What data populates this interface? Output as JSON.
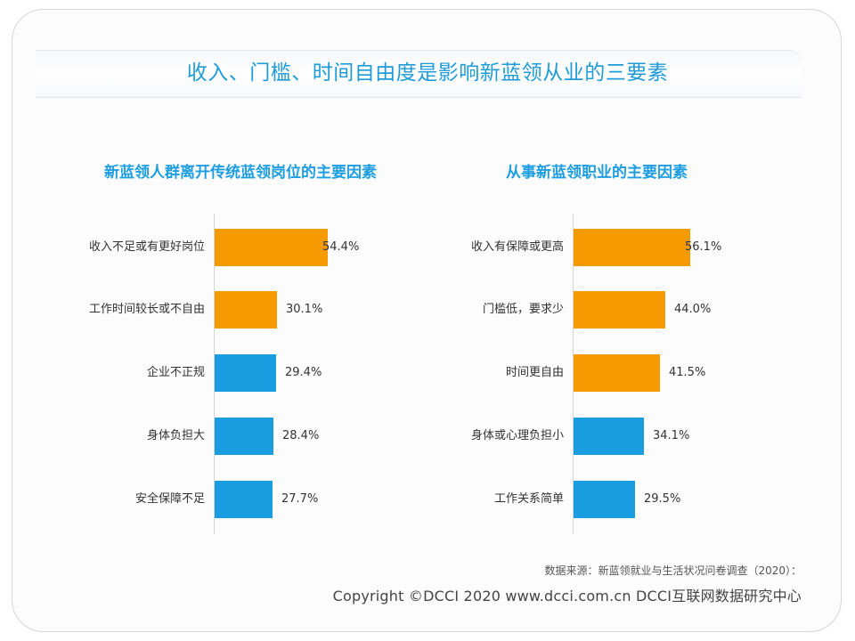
{
  "page": {
    "title": "收入、门槛、时间自由度是影响新蓝领从业的三要素",
    "source": "数据来源：新蓝领就业与生活状况问卷调查（2020）：",
    "copyright": "Copyright ©DCCI 2020  www.dcci.com.cn  DCCI互联网数据研究中心"
  },
  "colors": {
    "title": "#1f9bd7",
    "subtitle": "#1e9ee0",
    "highlight_bar": "#f59a00",
    "normal_bar": "#1a9de0"
  },
  "chart_data": [
    {
      "type": "bar",
      "orientation": "horizontal",
      "title": "新蓝领人群离开传统蓝领岗位的主要因素",
      "categories": [
        "收入不足或有更好岗位",
        "工作时间较长或不自由",
        "企业不正规",
        "身体负担大",
        "安全保障不足"
      ],
      "values": [
        54.4,
        30.1,
        29.4,
        28.4,
        27.7
      ],
      "value_labels": [
        "54.4%",
        "30.1%",
        "29.4%",
        "28.4%",
        "27.7%"
      ],
      "bar_colors": [
        "#f59a00",
        "#f59a00",
        "#1a9de0",
        "#1a9de0",
        "#1a9de0"
      ],
      "xlabel": "",
      "ylabel": "",
      "grid": false,
      "unit": "%"
    },
    {
      "type": "bar",
      "orientation": "horizontal",
      "title": "从事新蓝领职业的主要因素",
      "categories": [
        "收入有保障或更高",
        "门槛低，要求少",
        "时间更自由",
        "身体或心理负担小",
        "工作关系简单"
      ],
      "values": [
        56.1,
        44.0,
        41.5,
        34.1,
        29.5
      ],
      "value_labels": [
        "56.1%",
        "44.0%",
        "41.5%",
        "34.1%",
        "29.5%"
      ],
      "bar_colors": [
        "#f59a00",
        "#f59a00",
        "#f59a00",
        "#1a9de0",
        "#1a9de0"
      ],
      "xlabel": "",
      "ylabel": "",
      "grid": false,
      "unit": "%"
    }
  ]
}
